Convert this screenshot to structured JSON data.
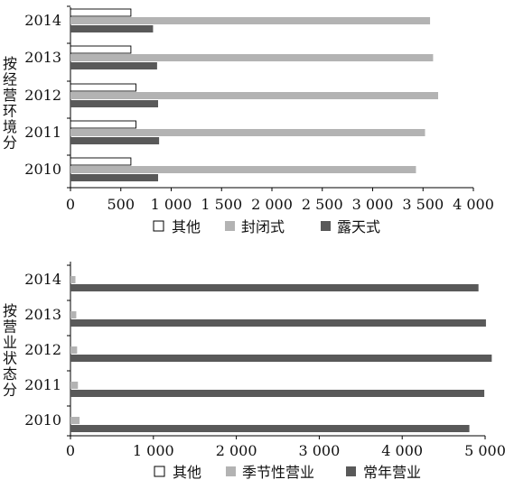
{
  "chart_data": [
    {
      "type": "bar",
      "orientation": "horizontal",
      "ylabel": "按经营环境分",
      "categories": [
        "2014",
        "2013",
        "2012",
        "2011",
        "2010"
      ],
      "xlim": [
        0,
        4000
      ],
      "xticks": [
        0,
        500,
        1000,
        1500,
        2000,
        2500,
        3000,
        3500,
        4000
      ],
      "xtick_labels": [
        "0",
        "500",
        "1 000",
        "1 500",
        "2 000",
        "2 500",
        "3 000",
        "3 500",
        "4 000"
      ],
      "grid": false,
      "legend_position": "bottom",
      "series": [
        {
          "name": "其他",
          "color": "#ffffff",
          "values": [
            600,
            600,
            650,
            650,
            600
          ]
        },
        {
          "name": "封闭式",
          "color": "#b3b3b3",
          "values": [
            3570,
            3600,
            3650,
            3520,
            3430
          ]
        },
        {
          "name": "露天式",
          "color": "#595959",
          "values": [
            820,
            860,
            870,
            880,
            870
          ]
        }
      ]
    },
    {
      "type": "bar",
      "orientation": "horizontal",
      "ylabel": "按营业状态分",
      "categories": [
        "2014",
        "2013",
        "2012",
        "2011",
        "2010"
      ],
      "xlim": [
        0,
        5000
      ],
      "xticks": [
        0,
        1000,
        2000,
        3000,
        4000,
        5000
      ],
      "xtick_labels": [
        "0",
        "1 000",
        "2 000",
        "3 000",
        "4 000",
        "5 000"
      ],
      "grid": false,
      "legend_position": "bottom",
      "series": [
        {
          "name": "其他",
          "color": "#ffffff",
          "values": [
            0,
            0,
            0,
            0,
            0
          ]
        },
        {
          "name": "季节性营业",
          "color": "#b3b3b3",
          "values": [
            60,
            70,
            80,
            90,
            110
          ]
        },
        {
          "name": "常年营业",
          "color": "#595959",
          "values": [
            4920,
            5010,
            5080,
            4990,
            4810
          ]
        }
      ]
    }
  ]
}
